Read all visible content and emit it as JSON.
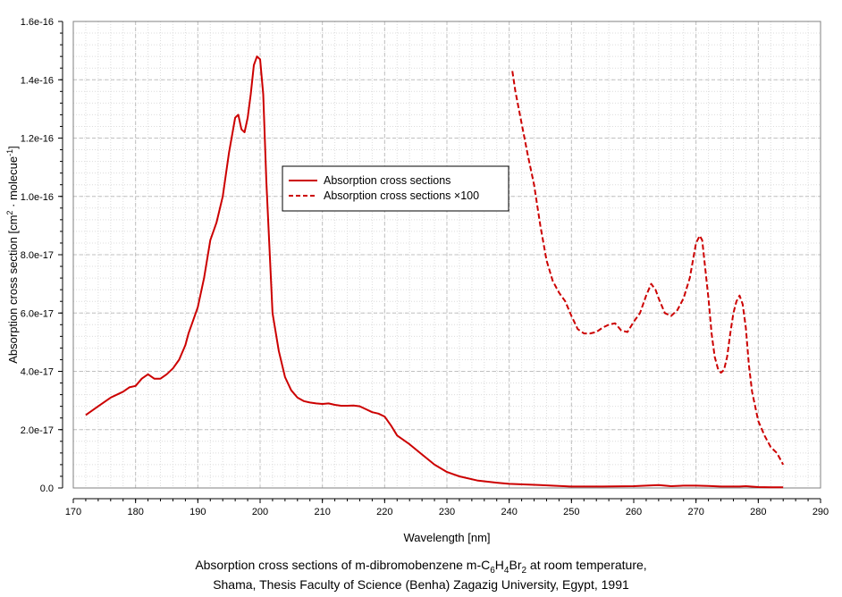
{
  "chart_data": {
    "type": "line",
    "title": "",
    "xlabel": "Wavelength [nm]",
    "ylabel": "Absorption cross section [cm² · molecue⁻¹]",
    "ylabel_parts": {
      "main": "Absorption cross section [cm",
      "sup1": "2",
      "mid": " · molecue",
      "sup2": "-1",
      "end": "]"
    },
    "xlim": [
      170,
      290
    ],
    "ylim": [
      0,
      1.6e-16
    ],
    "x_ticks": [
      170,
      180,
      190,
      200,
      210,
      220,
      230,
      240,
      250,
      260,
      270,
      280,
      290
    ],
    "x_tick_labels": [
      "170",
      "180",
      "190",
      "200",
      "210",
      "220",
      "230",
      "240",
      "250",
      "260",
      "270",
      "280",
      "290"
    ],
    "y_ticks": [
      0,
      2e-17,
      4e-17,
      6e-17,
      8e-17,
      1e-16,
      1.2e-16,
      1.4e-16,
      1.6e-16
    ],
    "y_tick_labels": [
      "0.0",
      "2.0e-17",
      "4.0e-17",
      "6.0e-17",
      "8.0e-17",
      "1.0e-16",
      "1.2e-16",
      "1.4e-16",
      "1.6e-16"
    ],
    "grid": true,
    "legend_position": "center",
    "colors": {
      "series": "#cc0000",
      "grid": "#c0c0c0"
    },
    "series": [
      {
        "name": "Absorption cross sections",
        "style": "solid",
        "x": [
          172,
          174,
          176,
          178,
          179,
          180,
          181,
          182,
          183,
          184,
          185,
          186,
          187,
          188,
          188.5,
          189,
          190,
          191,
          192,
          193,
          194,
          195,
          196,
          196.5,
          197,
          197.5,
          198,
          198.5,
          199,
          199.5,
          200,
          200.5,
          201,
          202,
          203,
          204,
          205,
          206,
          207,
          208,
          209,
          210,
          211,
          212,
          213,
          214,
          215,
          216,
          217,
          218,
          219,
          220,
          221,
          222,
          224,
          226,
          228,
          230,
          232,
          235,
          238,
          240,
          245,
          250,
          255,
          260,
          262,
          264,
          266,
          268,
          270,
          272,
          274,
          276,
          277,
          278,
          280,
          282,
          284
        ],
        "y": [
          2.5e-17,
          2.8e-17,
          3.1e-17,
          3.3e-17,
          3.45e-17,
          3.5e-17,
          3.75e-17,
          3.9e-17,
          3.75e-17,
          3.75e-17,
          3.9e-17,
          4.1e-17,
          4.4e-17,
          4.9e-17,
          5.3e-17,
          5.6e-17,
          6.2e-17,
          7.2e-17,
          8.5e-17,
          9.1e-17,
          1e-16,
          1.15e-16,
          1.27e-16,
          1.28e-16,
          1.23e-16,
          1.22e-16,
          1.27e-16,
          1.35e-16,
          1.45e-16,
          1.48e-16,
          1.47e-16,
          1.35e-16,
          1.05e-16,
          6e-17,
          4.7e-17,
          3.8e-17,
          3.35e-17,
          3.1e-17,
          2.98e-17,
          2.93e-17,
          2.9e-17,
          2.88e-17,
          2.9e-17,
          2.85e-17,
          2.82e-17,
          2.82e-17,
          2.83e-17,
          2.8e-17,
          2.7e-17,
          2.6e-17,
          2.55e-17,
          2.45e-17,
          2.15e-17,
          1.8e-17,
          1.5e-17,
          1.15e-17,
          8e-18,
          5.5e-18,
          4e-18,
          2.5e-18,
          1.8e-18,
          1.4e-18,
          1e-18,
          5e-19,
          5e-19,
          6e-19,
          8e-19,
          1e-18,
          6e-19,
          8e-19,
          8e-19,
          7e-19,
          5e-19,
          5e-19,
          5e-19,
          6e-19,
          3e-19,
          2e-19,
          2e-19
        ]
      },
      {
        "name": "Absorption cross sections ×100",
        "style": "dashed",
        "x": [
          240.5,
          241,
          242,
          243,
          244,
          245,
          246,
          247,
          248,
          249,
          250,
          251,
          252,
          253,
          254,
          255,
          256,
          257,
          258,
          259,
          260,
          261,
          262,
          262.8,
          263.5,
          264,
          265,
          266,
          267,
          268,
          269,
          270,
          270.6,
          271,
          271.5,
          272,
          272.5,
          273,
          273.5,
          274,
          274.5,
          275,
          275.5,
          276,
          276.5,
          277,
          277.5,
          278,
          278.5,
          279,
          280,
          281,
          282,
          283,
          284
        ],
        "y": [
          1.43e-16,
          1.36e-16,
          1.25e-16,
          1.14e-16,
          1.04e-16,
          9e-17,
          7.8e-17,
          7.1e-17,
          6.7e-17,
          6.4e-17,
          5.9e-17,
          5.45e-17,
          5.3e-17,
          5.3e-17,
          5.35e-17,
          5.5e-17,
          5.6e-17,
          5.65e-17,
          5.4e-17,
          5.35e-17,
          5.7e-17,
          6e-17,
          6.6e-17,
          7e-17,
          6.8e-17,
          6.5e-17,
          6e-17,
          5.9e-17,
          6.1e-17,
          6.5e-17,
          7.2e-17,
          8.4e-17,
          8.65e-17,
          8.5e-17,
          7.5e-17,
          6.5e-17,
          5.3e-17,
          4.5e-17,
          4.1e-17,
          3.95e-17,
          4.05e-17,
          4.5e-17,
          5.3e-17,
          6e-17,
          6.4e-17,
          6.6e-17,
          6.3e-17,
          5.5e-17,
          4.2e-17,
          3.3e-17,
          2.3e-17,
          1.8e-17,
          1.4e-17,
          1.2e-17,
          8e-18
        ]
      }
    ],
    "caption": {
      "line1_parts": [
        "Absorption cross sections of m-dibromobenzene m-C",
        "6",
        "H",
        "4",
        "Br",
        "2",
        " at room temperature,"
      ],
      "line2": "Shama, Thesis Faculty of Science (Benha) Zagazig University, Egypt, 1991"
    }
  }
}
